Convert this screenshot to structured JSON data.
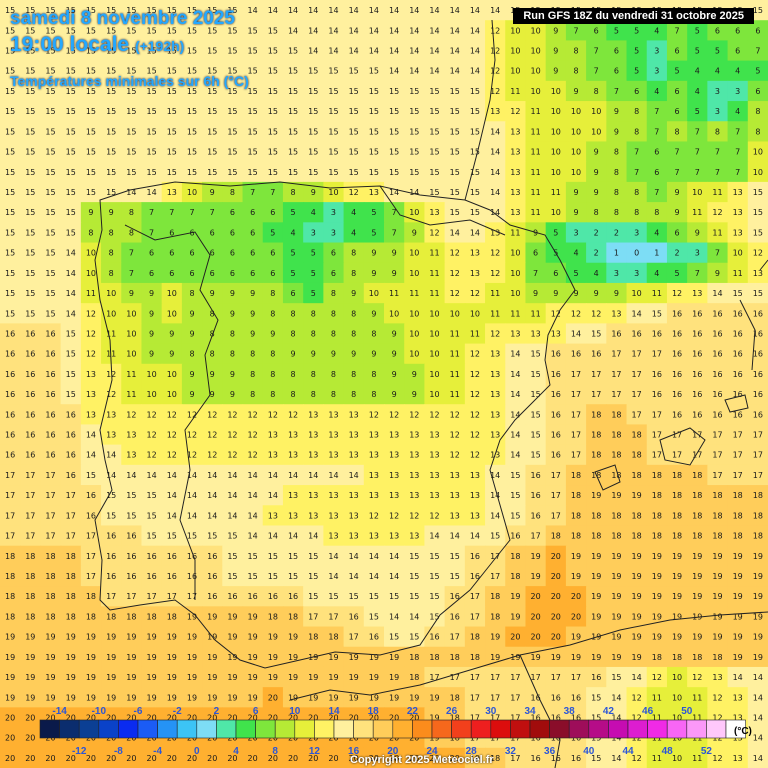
{
  "header": {
    "date_line": "samedi 8 novembre 2025",
    "time_line": "19:00 locale",
    "lead_time": "(+192h)",
    "product": "Températures minimales sur 6h (°C)",
    "run_info": "Run GFS 18Z du vendredi 31 octobre 2025"
  },
  "legend": {
    "unit": "(°C)",
    "top_labels": [
      "-14",
      "-10",
      "-6",
      "-2",
      "2",
      "6",
      "10",
      "14",
      "18",
      "22",
      "26",
      "30",
      "34",
      "38",
      "42",
      "46",
      "50"
    ],
    "bottom_labels": [
      "-12",
      "-8",
      "-4",
      "0",
      "4",
      "8",
      "12",
      "16",
      "20",
      "24",
      "28",
      "32",
      "36",
      "40",
      "44",
      "48",
      "52"
    ],
    "colors": [
      "#0a1a4a",
      "#0b2d6e",
      "#0b3f94",
      "#0a42c8",
      "#0a2bf0",
      "#1b5cf5",
      "#2593f5",
      "#3cc4f5",
      "#7dddf5",
      "#4fe7a8",
      "#40e34c",
      "#7ee63c",
      "#b6ea35",
      "#e6ef3a",
      "#fff264",
      "#fff09e",
      "#ffe27d",
      "#ffcd5a",
      "#ffb030",
      "#fb8c1c",
      "#f6681c",
      "#f2401c",
      "#ee1f1f",
      "#dc0d0d",
      "#c00f0f",
      "#a10c0c",
      "#8a0d2a",
      "#9e0d5a",
      "#b60c88",
      "#c60cb1",
      "#dd1dd0",
      "#f02ae6",
      "#f866f5",
      "#fb98f8",
      "#ffc8fb",
      "#ffffff"
    ]
  },
  "copyright": "Copyright 2025 Meteociel.fr",
  "map_data": {
    "grid_rows": [
      "15 15 15 15 15 15 15 15 15 15 15 15 14 14 14 14 14 14 14 14 14 14 14 14 14 15 15 15 15 15 15 15 15 15 15 15 15 15",
      "15 15 15 15 15 15 15 15 15 15 15 15 15 15 14 14 14 14 14 14 14 14 14 14 12 10 10 9 7 6 5 5 4 7 5 6 6 6",
      "15 15 15 15 15 15 15 15 15 15 15 15 15 15 15 14 14 14 14 14 14 14 14 14 12 10 10 9 8 7 6 5 3 6 5 5 6 7",
      "15 15 15 15 15 15 15 15 15 15 15 15 15 15 15 15 15 15 15 14 14 14 14 14 12 10 10 9 8 7 6 5 3 5 4 4 4 5",
      "15 15 15 15 15 15 15 15 15 15 15 15 15 15 15 15 15 15 15 15 15 15 15 15 12 11 10 10 9 8 7 6 4 6 4 3 3 6",
      "15 15 15 15 15 15 15 15 15 15 15 15 15 15 15 15 15 15 15 15 15 15 15 15 13 12 11 10 10 10 9 8 7 6 5 3 4 8",
      "15 15 15 15 15 15 15 15 15 15 15 15 15 15 15 15 15 15 15 15 15 15 15 15 14 13 11 10 10 10 9 8 7 8 7 8 7 8",
      "15 15 15 15 15 15 15 15 15 15 15 15 15 15 15 15 15 15 15 15 15 15 15 15 14 13 11 10 10 9 8 7 6 7 7 7 7 10",
      "15 15 15 15 15 15 15 15 15 15 15 15 15 15 15 15 15 15 15 15 15 15 15 15 14 13 11 10 10 9 8 7 6 7 7 7 7 10",
      "15 15 15 15 15 15 14 14 13 10 9 8 7 7 8 9 10 12 13 14 14 15 15 15 14 13 11 11 9 9 8 8 7 9 10 11 13 15",
      "15 15 15 15 9 9 8 7 7 7 7 6 6 6 5 4 3 4 5 7 10 13 15 15 14 13 11 10 9 8 8 8 8 9 11 12 13 15",
      "15 15 15 15 8 8 8 7 6 6 6 6 6 5 4 3 3 4 5 7 9 12 14 14 13 11 9 5 3 2 2 3 4 6 9 11 13 15",
      "15 15 15 14 10 8 7 6 6 6 6 6 6 6 5 5 6 8 9 9 10 11 12 13 12 10 6 5 4 2 1 0 1 2 3 7 10 12",
      "15 15 15 14 10 8 7 6 6 6 6 6 6 6 5 5 6 8 9 9 10 11 12 13 12 10 7 6 5 4 3 3 4 5 7 9 11 13",
      "15 15 15 14 11 10 9 9 10 8 9 9 9 8 6 5 8 9 10 11 11 11 12 12 11 10 9 9 9 9 9 10 11 12 13 14 15 15",
      "15 15 15 14 12 10 10 9 10 9 8 9 9 8 8 8 8 8 9 10 10 10 10 10 11 11 11 12 12 12 13 14 15 16 16 16 16 16",
      "16 16 16 15 12 11 10 9 9 9 8 8 9 9 8 8 8 8 8 9 10 10 11 11 12 13 13 13 14 15 16 16 16 16 16 16 16 16",
      "16 16 16 15 12 11 10 9 9 8 8 8 8 8 9 9 9 9 9 9 10 10 11 12 13 14 15 16 16 16 17 17 17 16 16 16 16 16",
      "16 16 16 15 13 12 11 10 10 9 9 9 8 8 8 8 8 8 8 9 9 10 11 12 13 14 15 16 17 17 17 17 16 16 16 16 16 16",
      "16 16 16 15 13 12 11 10 10 9 9 9 8 8 8 8 8 8 8 9 9 10 11 12 13 14 15 16 17 17 17 17 16 16 16 16 16 16",
      "16 16 16 16 13 13 12 12 12 12 12 12 12 12 12 13 13 13 12 12 12 12 12 12 13 14 15 16 17 18 18 17 17 16 16 16 16 16",
      "16 16 16 16 14 13 13 12 12 12 12 12 12 13 13 13 13 13 13 13 13 13 12 12 13 14 15 16 17 18 18 18 17 17 17 17 17 17",
      "16 16 16 16 14 14 13 12 12 12 12 12 12 13 13 13 13 13 13 13 13 13 12 12 13 14 15 16 17 18 18 18 17 17 17 17 17 17",
      "17 17 17 16 15 14 14 14 14 14 14 14 14 14 14 14 14 14 13 13 13 13 13 13 14 15 16 17 18 18 18 18 18 18 18 17 17 17",
      "17 17 17 17 16 15 15 15 14 14 14 14 14 14 13 13 13 13 13 13 13 13 13 13 14 15 16 17 18 19 19 19 18 18 18 18 18 18",
      "17 17 17 17 16 15 15 15 14 14 14 14 14 13 13 13 13 13 12 12 12 12 13 13 14 15 16 17 18 18 18 18 18 18 18 18 18 18",
      "17 17 17 17 17 16 16 15 15 15 15 15 14 14 14 14 13 13 13 13 13 14 14 14 15 16 17 18 18 18 18 18 18 18 18 18 18 18",
      "18 18 18 18 17 16 16 16 16 16 16 15 15 15 15 15 14 14 14 14 15 15 15 16 17 18 19 20 19 19 19 19 19 19 19 19 19 19",
      "18 18 18 18 17 16 16 16 16 16 16 15 15 15 15 15 14 14 14 14 15 15 15 16 17 18 19 20 19 19 19 19 19 19 19 19 19 19",
      "18 18 18 18 18 17 17 17 17 17 16 16 16 16 16 15 15 15 15 15 15 15 16 17 18 19 20 20 20 19 19 19 19 19 19 19 19 19",
      "18 18 18 18 18 18 18 18 18 19 19 19 19 18 18 17 17 16 15 14 14 15 16 17 18 19 20 20 20 19 19 19 19 19 19 19 19 19",
      "19 19 19 19 19 19 19 19 19 19 19 19 19 19 19 18 18 17 16 15 15 16 17 18 19 20 20 20 19 19 19 19 19 19 19 19 19 19",
      "19 19 19 19 19 19 19 19 19 19 19 19 19 19 19 19 19 19 19 19 18 18 18 18 19 19 19 19 19 19 19 19 18 18 18 18 19 19",
      "19 19 19 19 19 19 19 19 19 19 19 19 19 19 19 19 19 19 19 19 18 17 17 17 17 17 17 17 17 16 15 14 12 10 12 13 14 14",
      "19 19 19 19 19 19 19 19 19 19 19 19 19 20 19 19 19 19 19 19 19 19 18 17 17 17 16 16 16 15 14 12 11 10 11 12 13 14",
      "20 20 20 20 20 20 20 20 20 20 20 20 20 20 20 20 20 20 20 20 20 19 18 17 17 17 16 16 16 15 14 12 11 10 11 12 13 14",
      "20 20 20 20 20 20 20 20 20 20 20 20 20 20 20 20 20 20 20 20 20 19 18 17 17 17 16 16 16 15 14 12 11 10 11 12 13 14",
      "20 20 20 20 20 20 20 20 20 20 20 20 20 20 20 20 20 20 20 20 20 20 20 19 18 17 16 16 16 15 14 12 11 10 11 12 13 14"
    ]
  }
}
